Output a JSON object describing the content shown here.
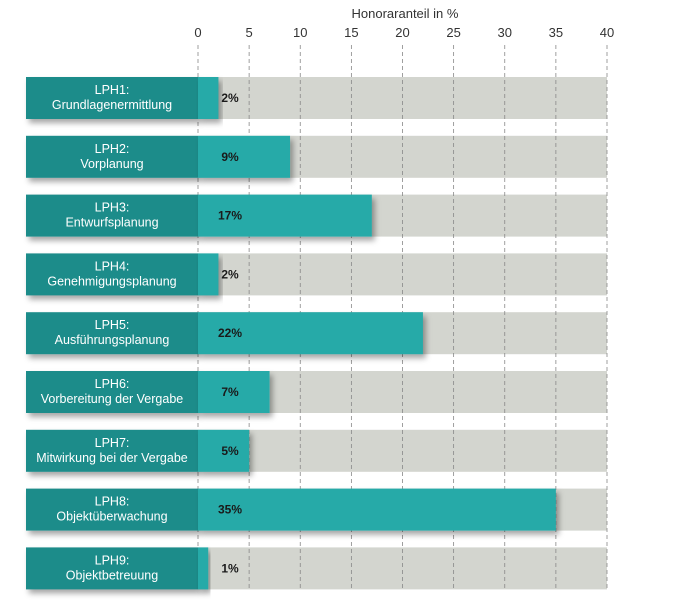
{
  "chart_data": {
    "type": "bar",
    "orientation": "horizontal",
    "title": "",
    "xlabel": "Honoraranteil in %",
    "ylabel": "",
    "xlim": [
      0,
      40
    ],
    "xticks": [
      0,
      5,
      10,
      15,
      20,
      25,
      30,
      35,
      40
    ],
    "grid": "vertical dashed",
    "categories": [
      [
        "LPH1:",
        "Grundlagenermittlung"
      ],
      [
        "LPH2:",
        "Vorplanung"
      ],
      [
        "LPH3:",
        "Entwurfsplanung"
      ],
      [
        "LPH4:",
        "Genehmigungsplanung"
      ],
      [
        "LPH5:",
        "Ausführungsplanung"
      ],
      [
        "LPH6:",
        "Vorbereitung der Vergabe"
      ],
      [
        "LPH7:",
        "Mitwirkung bei der Vergabe"
      ],
      [
        "LPH8:",
        "Objektüberwachung"
      ],
      [
        "LPH9:",
        "Objektbetreuung"
      ]
    ],
    "values": [
      2,
      9,
      17,
      2,
      22,
      7,
      5,
      35,
      1
    ],
    "value_labels": [
      "2%",
      "9%",
      "17%",
      "2%",
      "22%",
      "7%",
      "5%",
      "35%",
      "1%"
    ]
  },
  "colors": {
    "label_box": "#1e8c8a",
    "bar": "#27aaa8",
    "track": "#d3d5cf",
    "grid": "#888888",
    "shadow": "#7a7a7a"
  }
}
